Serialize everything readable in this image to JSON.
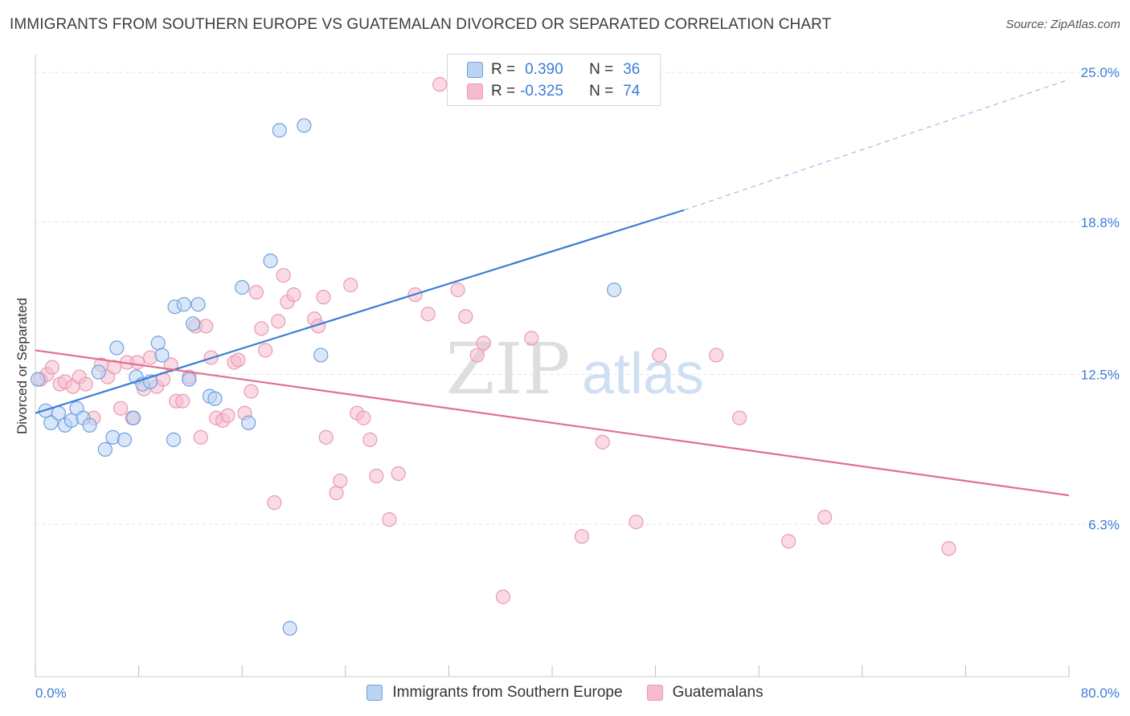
{
  "title": "IMMIGRANTS FROM SOUTHERN EUROPE VS GUATEMALAN DIVORCED OR SEPARATED CORRELATION CHART",
  "source": "Source: ZipAtlas.com",
  "watermark": {
    "zip": "ZIP",
    "atlas": "atlas"
  },
  "legend": {
    "rows": [
      {
        "r_label": "R =",
        "r_value": "0.390",
        "n_label": "N =",
        "n_value": "36"
      },
      {
        "r_label": "R =",
        "r_value": "-0.325",
        "n_label": "N =",
        "n_value": "74"
      }
    ]
  },
  "colors": {
    "blue": "#3b7dd8",
    "blue_fill": "#b9d3f3",
    "pink": "#e0708f",
    "pink_fill": "#f6bccd",
    "tick_label": "#3b7dd8",
    "grid": "#e2e2e2"
  },
  "chart_data": {
    "type": "scatter",
    "title": "IMMIGRANTS FROM SOUTHERN EUROPE VS GUATEMALAN DIVORCED OR SEPARATED CORRELATION CHART",
    "xlabel": "",
    "ylabel": "Divorced or Separated",
    "xlim": [
      0,
      80
    ],
    "ylim": [
      0,
      25.6
    ],
    "x_tick_labels": [
      "0.0%",
      "80.0%"
    ],
    "y_ticks": [
      6.3,
      12.5,
      18.8,
      25.0
    ],
    "y_tick_labels": [
      "6.3%",
      "12.5%",
      "18.8%",
      "25.0%"
    ],
    "grid": true,
    "legend_position": "bottom-center",
    "series": [
      {
        "name": "Immigrants from Southern Europe",
        "color": "#3b7dd8",
        "R": 0.39,
        "N": 36,
        "trend": {
          "x0": 0,
          "y0": 10.9,
          "x1": 50.2,
          "y1": 19.3,
          "dash_to_x": 80,
          "dash_to_y": 24.7
        },
        "points": [
          [
            0.2,
            12.3
          ],
          [
            0.8,
            11.0
          ],
          [
            1.2,
            10.5
          ],
          [
            1.8,
            10.9
          ],
          [
            2.3,
            10.4
          ],
          [
            2.8,
            10.6
          ],
          [
            3.2,
            11.1
          ],
          [
            3.7,
            10.7
          ],
          [
            4.2,
            10.4
          ],
          [
            4.9,
            12.6
          ],
          [
            5.4,
            9.4
          ],
          [
            6.0,
            9.9
          ],
          [
            6.3,
            13.6
          ],
          [
            6.9,
            9.8
          ],
          [
            7.6,
            10.7
          ],
          [
            7.8,
            12.4
          ],
          [
            8.3,
            12.1
          ],
          [
            8.9,
            12.2
          ],
          [
            9.5,
            13.8
          ],
          [
            9.8,
            13.3
          ],
          [
            10.7,
            9.8
          ],
          [
            10.8,
            15.3
          ],
          [
            11.5,
            15.4
          ],
          [
            11.9,
            12.3
          ],
          [
            12.2,
            14.6
          ],
          [
            12.6,
            15.4
          ],
          [
            13.5,
            11.6
          ],
          [
            13.9,
            11.5
          ],
          [
            16.5,
            10.5
          ],
          [
            16.0,
            16.1
          ],
          [
            18.2,
            17.2
          ],
          [
            18.9,
            22.6
          ],
          [
            19.7,
            2.0
          ],
          [
            20.8,
            22.8
          ],
          [
            22.1,
            13.3
          ],
          [
            44.8,
            16.0
          ]
        ]
      },
      {
        "name": "Guatemalans",
        "color": "#e0708f",
        "R": -0.325,
        "N": 74,
        "trend": {
          "x0": 0,
          "y0": 13.5,
          "x1": 80,
          "y1": 7.5
        },
        "points": [
          [
            0.4,
            12.3
          ],
          [
            0.9,
            12.5
          ],
          [
            1.3,
            12.8
          ],
          [
            1.9,
            12.1
          ],
          [
            2.3,
            12.2
          ],
          [
            2.9,
            12.0
          ],
          [
            3.4,
            12.4
          ],
          [
            3.9,
            12.1
          ],
          [
            4.5,
            10.7
          ],
          [
            5.1,
            12.9
          ],
          [
            5.6,
            12.4
          ],
          [
            6.1,
            12.8
          ],
          [
            6.6,
            11.1
          ],
          [
            7.1,
            13.0
          ],
          [
            7.5,
            10.7
          ],
          [
            7.9,
            13.0
          ],
          [
            8.4,
            11.9
          ],
          [
            8.9,
            13.2
          ],
          [
            9.4,
            12.0
          ],
          [
            9.9,
            12.3
          ],
          [
            10.5,
            12.9
          ],
          [
            10.9,
            11.4
          ],
          [
            11.4,
            11.4
          ],
          [
            11.9,
            12.4
          ],
          [
            12.4,
            14.5
          ],
          [
            12.8,
            9.9
          ],
          [
            13.2,
            14.5
          ],
          [
            13.6,
            13.2
          ],
          [
            14.0,
            10.7
          ],
          [
            14.5,
            10.6
          ],
          [
            14.9,
            10.8
          ],
          [
            15.4,
            13.0
          ],
          [
            15.7,
            13.1
          ],
          [
            16.2,
            10.9
          ],
          [
            16.7,
            11.8
          ],
          [
            17.1,
            15.9
          ],
          [
            17.5,
            14.4
          ],
          [
            17.8,
            13.5
          ],
          [
            18.5,
            7.2
          ],
          [
            18.8,
            14.7
          ],
          [
            19.2,
            16.6
          ],
          [
            19.5,
            15.5
          ],
          [
            20.0,
            15.8
          ],
          [
            21.6,
            14.8
          ],
          [
            21.9,
            14.5
          ],
          [
            22.3,
            15.7
          ],
          [
            22.5,
            9.9
          ],
          [
            23.3,
            7.6
          ],
          [
            23.6,
            8.1
          ],
          [
            24.4,
            16.2
          ],
          [
            24.9,
            10.9
          ],
          [
            25.4,
            10.7
          ],
          [
            25.9,
            9.8
          ],
          [
            26.4,
            8.3
          ],
          [
            27.4,
            6.5
          ],
          [
            28.1,
            8.4
          ],
          [
            29.4,
            15.8
          ],
          [
            30.4,
            15.0
          ],
          [
            31.3,
            24.5
          ],
          [
            32.7,
            16.0
          ],
          [
            33.3,
            14.9
          ],
          [
            34.2,
            13.3
          ],
          [
            34.7,
            13.8
          ],
          [
            36.2,
            3.3
          ],
          [
            38.4,
            14.0
          ],
          [
            42.3,
            5.8
          ],
          [
            43.9,
            9.7
          ],
          [
            46.5,
            6.4
          ],
          [
            48.3,
            13.3
          ],
          [
            52.7,
            13.3
          ],
          [
            54.5,
            10.7
          ],
          [
            58.3,
            5.6
          ],
          [
            61.1,
            6.6
          ],
          [
            70.7,
            5.3
          ]
        ]
      }
    ]
  }
}
